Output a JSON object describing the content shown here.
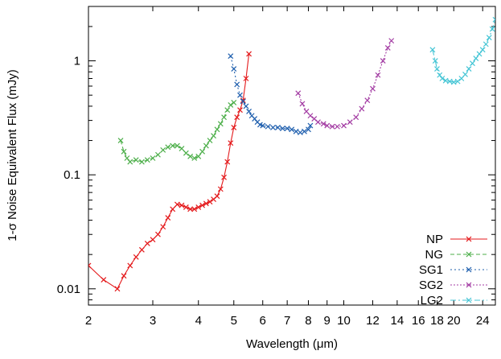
{
  "chart_data": {
    "type": "line",
    "title": "",
    "xlabel": "Wavelength (μm)",
    "ylabel": "1-σ Noise Equivalent Flux (mJy)",
    "xscale": "log",
    "yscale": "log",
    "xlim": [
      2,
      26
    ],
    "ylim": [
      0.0072,
      3.0
    ],
    "grid": false,
    "legend_position": "bottom-right",
    "x_ticks": [
      {
        "value": 2,
        "label": "2"
      },
      {
        "value": 3,
        "label": "3"
      },
      {
        "value": 4,
        "label": "4"
      },
      {
        "value": 5,
        "label": "5"
      },
      {
        "value": 6,
        "label": "6"
      },
      {
        "value": 7,
        "label": "7"
      },
      {
        "value": 8,
        "label": "8"
      },
      {
        "value": 9,
        "label": "9"
      },
      {
        "value": 10,
        "label": "10"
      },
      {
        "value": 12,
        "label": "12"
      },
      {
        "value": 14,
        "label": "14"
      },
      {
        "value": 16,
        "label": "16"
      },
      {
        "value": 18,
        "label": "18"
      },
      {
        "value": 20,
        "label": "20"
      },
      {
        "value": 24,
        "label": "24"
      }
    ],
    "y_ticks": [
      {
        "value": 0.01,
        "label": "0.01"
      },
      {
        "value": 0.1,
        "label": "0.1"
      },
      {
        "value": 1,
        "label": "1"
      }
    ],
    "series": [
      {
        "name": "NP",
        "color": "#e41a1c",
        "dash": "",
        "marker_step": 1,
        "x": [
          2.0,
          2.2,
          2.4,
          2.5,
          2.6,
          2.7,
          2.8,
          2.9,
          3.0,
          3.1,
          3.2,
          3.3,
          3.4,
          3.5,
          3.6,
          3.7,
          3.8,
          3.9,
          4.0,
          4.1,
          4.2,
          4.3,
          4.4,
          4.5,
          4.6,
          4.7,
          4.8,
          4.9,
          5.0,
          5.1,
          5.2,
          5.3,
          5.4,
          5.5
        ],
        "y": [
          0.016,
          0.012,
          0.01,
          0.013,
          0.016,
          0.019,
          0.022,
          0.025,
          0.027,
          0.03,
          0.035,
          0.042,
          0.05,
          0.055,
          0.054,
          0.052,
          0.05,
          0.05,
          0.052,
          0.054,
          0.056,
          0.058,
          0.061,
          0.065,
          0.075,
          0.095,
          0.13,
          0.19,
          0.26,
          0.32,
          0.37,
          0.45,
          0.7,
          1.15
        ]
      },
      {
        "name": "NG",
        "color": "#4daf4a",
        "dash": "5,3",
        "marker_step": 1,
        "x": [
          2.45,
          2.5,
          2.55,
          2.6,
          2.7,
          2.8,
          2.9,
          3.0,
          3.1,
          3.2,
          3.3,
          3.4,
          3.5,
          3.6,
          3.7,
          3.8,
          3.9,
          4.0,
          4.1,
          4.2,
          4.3,
          4.4,
          4.5,
          4.6,
          4.7,
          4.8,
          4.9,
          5.0
        ],
        "y": [
          0.2,
          0.16,
          0.14,
          0.13,
          0.135,
          0.13,
          0.135,
          0.14,
          0.15,
          0.165,
          0.175,
          0.18,
          0.18,
          0.17,
          0.155,
          0.145,
          0.14,
          0.145,
          0.16,
          0.18,
          0.2,
          0.22,
          0.25,
          0.28,
          0.32,
          0.37,
          0.41,
          0.43
        ]
      },
      {
        "name": "SG1",
        "color": "#1f5fae",
        "dash": "2,3",
        "marker_step": 1,
        "x": [
          4.9,
          5.0,
          5.1,
          5.2,
          5.3,
          5.4,
          5.5,
          5.6,
          5.7,
          5.8,
          5.9,
          6.0,
          6.2,
          6.4,
          6.6,
          6.8,
          7.0,
          7.2,
          7.4,
          7.6,
          7.8,
          8.0,
          8.1
        ],
        "y": [
          1.1,
          0.85,
          0.62,
          0.5,
          0.44,
          0.4,
          0.36,
          0.33,
          0.31,
          0.29,
          0.275,
          0.27,
          0.265,
          0.26,
          0.26,
          0.255,
          0.255,
          0.25,
          0.24,
          0.235,
          0.24,
          0.25,
          0.27
        ]
      },
      {
        "name": "SG2",
        "color": "#a43ea4",
        "dash": "2,2",
        "marker_step": 1,
        "x": [
          7.5,
          7.7,
          7.9,
          8.1,
          8.3,
          8.5,
          8.8,
          9.0,
          9.3,
          9.6,
          10.0,
          10.4,
          10.8,
          11.2,
          11.6,
          12.0,
          12.4,
          12.8,
          13.2,
          13.5
        ],
        "y": [
          0.52,
          0.42,
          0.36,
          0.33,
          0.31,
          0.29,
          0.28,
          0.27,
          0.265,
          0.265,
          0.27,
          0.29,
          0.32,
          0.38,
          0.45,
          0.57,
          0.75,
          1.0,
          1.3,
          1.5
        ]
      },
      {
        "name": "LG2",
        "color": "#45c5d5",
        "dash": "7,3,2,3",
        "marker_step": 1,
        "x": [
          17.5,
          17.8,
          18.0,
          18.3,
          18.6,
          19.0,
          19.5,
          20.0,
          20.5,
          21.0,
          21.5,
          22.0,
          22.5,
          23.0,
          23.5,
          24.0,
          24.5,
          25.0,
          25.5,
          26.0
        ],
        "y": [
          1.25,
          1.0,
          0.85,
          0.75,
          0.7,
          0.67,
          0.66,
          0.65,
          0.66,
          0.7,
          0.76,
          0.85,
          0.95,
          1.05,
          1.15,
          1.25,
          1.4,
          1.6,
          1.9,
          2.3
        ]
      }
    ]
  }
}
